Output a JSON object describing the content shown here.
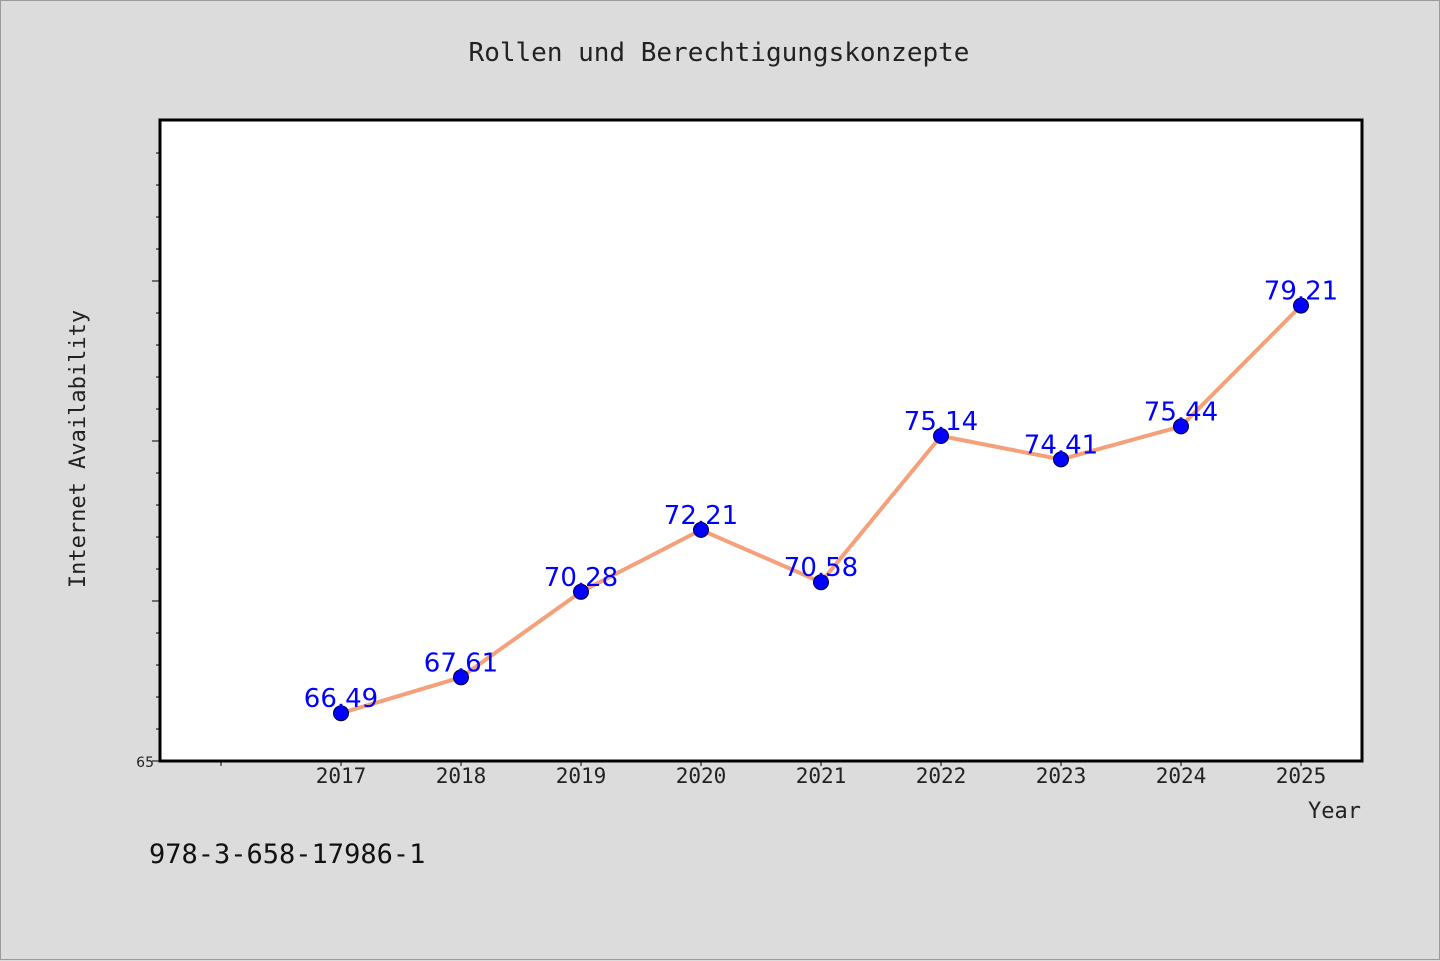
{
  "chart_data": {
    "type": "line",
    "title": "Rollen und Berechtigungskonzepte",
    "xlabel": "Year",
    "ylabel": "Internet Availability",
    "categories": [
      "2017",
      "2018",
      "2019",
      "2020",
      "2021",
      "2022",
      "2023",
      "2024",
      "2025"
    ],
    "series": [
      {
        "values": [
          66.49,
          67.61,
          70.28,
          72.21,
          70.58,
          75.14,
          74.41,
          75.44,
          79.21
        ],
        "labels": [
          "66.49",
          "67.61",
          "70.28",
          "72.21",
          "70.58",
          "75.14",
          "74.41",
          "75.44",
          "79.21"
        ],
        "line_color": "#f4a07a",
        "marker_color": "#0000ff"
      }
    ],
    "ylim": [
      65,
      85
    ],
    "y_tick_labels": [
      "65"
    ],
    "grid": false,
    "legend": "none",
    "footnote": "978-3-658-17986-1"
  }
}
